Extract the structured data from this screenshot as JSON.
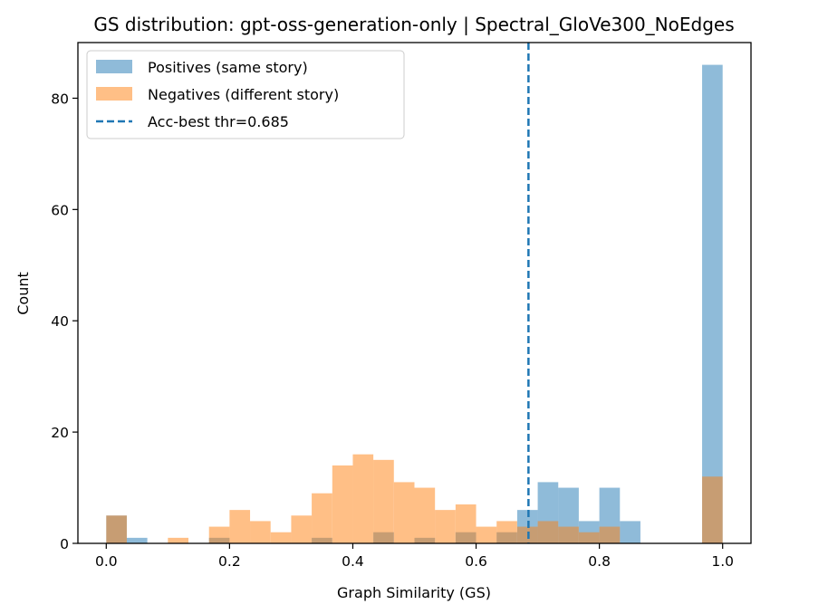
{
  "chart_data": {
    "type": "bar",
    "title": "GS distribution: gpt-oss-generation-only | Spectral_GloVe300_NoEdges",
    "xlabel": "Graph Similarity (GS)",
    "ylabel": "Count",
    "xlim": [
      -0.046,
      1.046
    ],
    "ylim": [
      0,
      90
    ],
    "x_ticks": [
      0.0,
      0.2,
      0.4,
      0.6,
      0.8,
      1.0
    ],
    "x_tick_labels": [
      "0.0",
      "0.2",
      "0.4",
      "0.6",
      "0.8",
      "1.0"
    ],
    "y_ticks": [
      0,
      20,
      40,
      60,
      80
    ],
    "y_tick_labels": [
      "0",
      "20",
      "40",
      "60",
      "80"
    ],
    "grid": false,
    "legend_position": "top-left",
    "bin_width": 0.0333,
    "bin_start": 0.0,
    "series": [
      {
        "name": "Positives (same story)",
        "color": "#1f77b4",
        "opacity": 0.5,
        "bins": [
          [
            0.0,
            5
          ],
          [
            0.0333,
            1
          ],
          [
            0.1667,
            1
          ],
          [
            0.3333,
            1
          ],
          [
            0.4333,
            2
          ],
          [
            0.5,
            1
          ],
          [
            0.5667,
            2
          ],
          [
            0.6333,
            2
          ],
          [
            0.6667,
            6
          ],
          [
            0.7,
            11
          ],
          [
            0.7333,
            10
          ],
          [
            0.7667,
            4
          ],
          [
            0.8,
            10
          ],
          [
            0.8333,
            4
          ],
          [
            0.9667,
            86
          ]
        ]
      },
      {
        "name": "Negatives (different story)",
        "color": "#ff7f0e",
        "opacity": 0.5,
        "bins": [
          [
            0.0,
            5
          ],
          [
            0.1,
            1
          ],
          [
            0.1667,
            3
          ],
          [
            0.2,
            6
          ],
          [
            0.2333,
            4
          ],
          [
            0.2667,
            2
          ],
          [
            0.3,
            5
          ],
          [
            0.3333,
            9
          ],
          [
            0.3667,
            14
          ],
          [
            0.4,
            16
          ],
          [
            0.4333,
            15
          ],
          [
            0.4667,
            11
          ],
          [
            0.5,
            10
          ],
          [
            0.5333,
            6
          ],
          [
            0.5667,
            7
          ],
          [
            0.6,
            3
          ],
          [
            0.6333,
            4
          ],
          [
            0.6667,
            3
          ],
          [
            0.7,
            4
          ],
          [
            0.7333,
            3
          ],
          [
            0.7667,
            2
          ],
          [
            0.8,
            3
          ],
          [
            0.9667,
            12
          ]
        ]
      }
    ],
    "threshold": {
      "name": "Acc-best thr=0.685",
      "value": 0.685,
      "color": "#1f77b4",
      "style": "dashed"
    }
  }
}
